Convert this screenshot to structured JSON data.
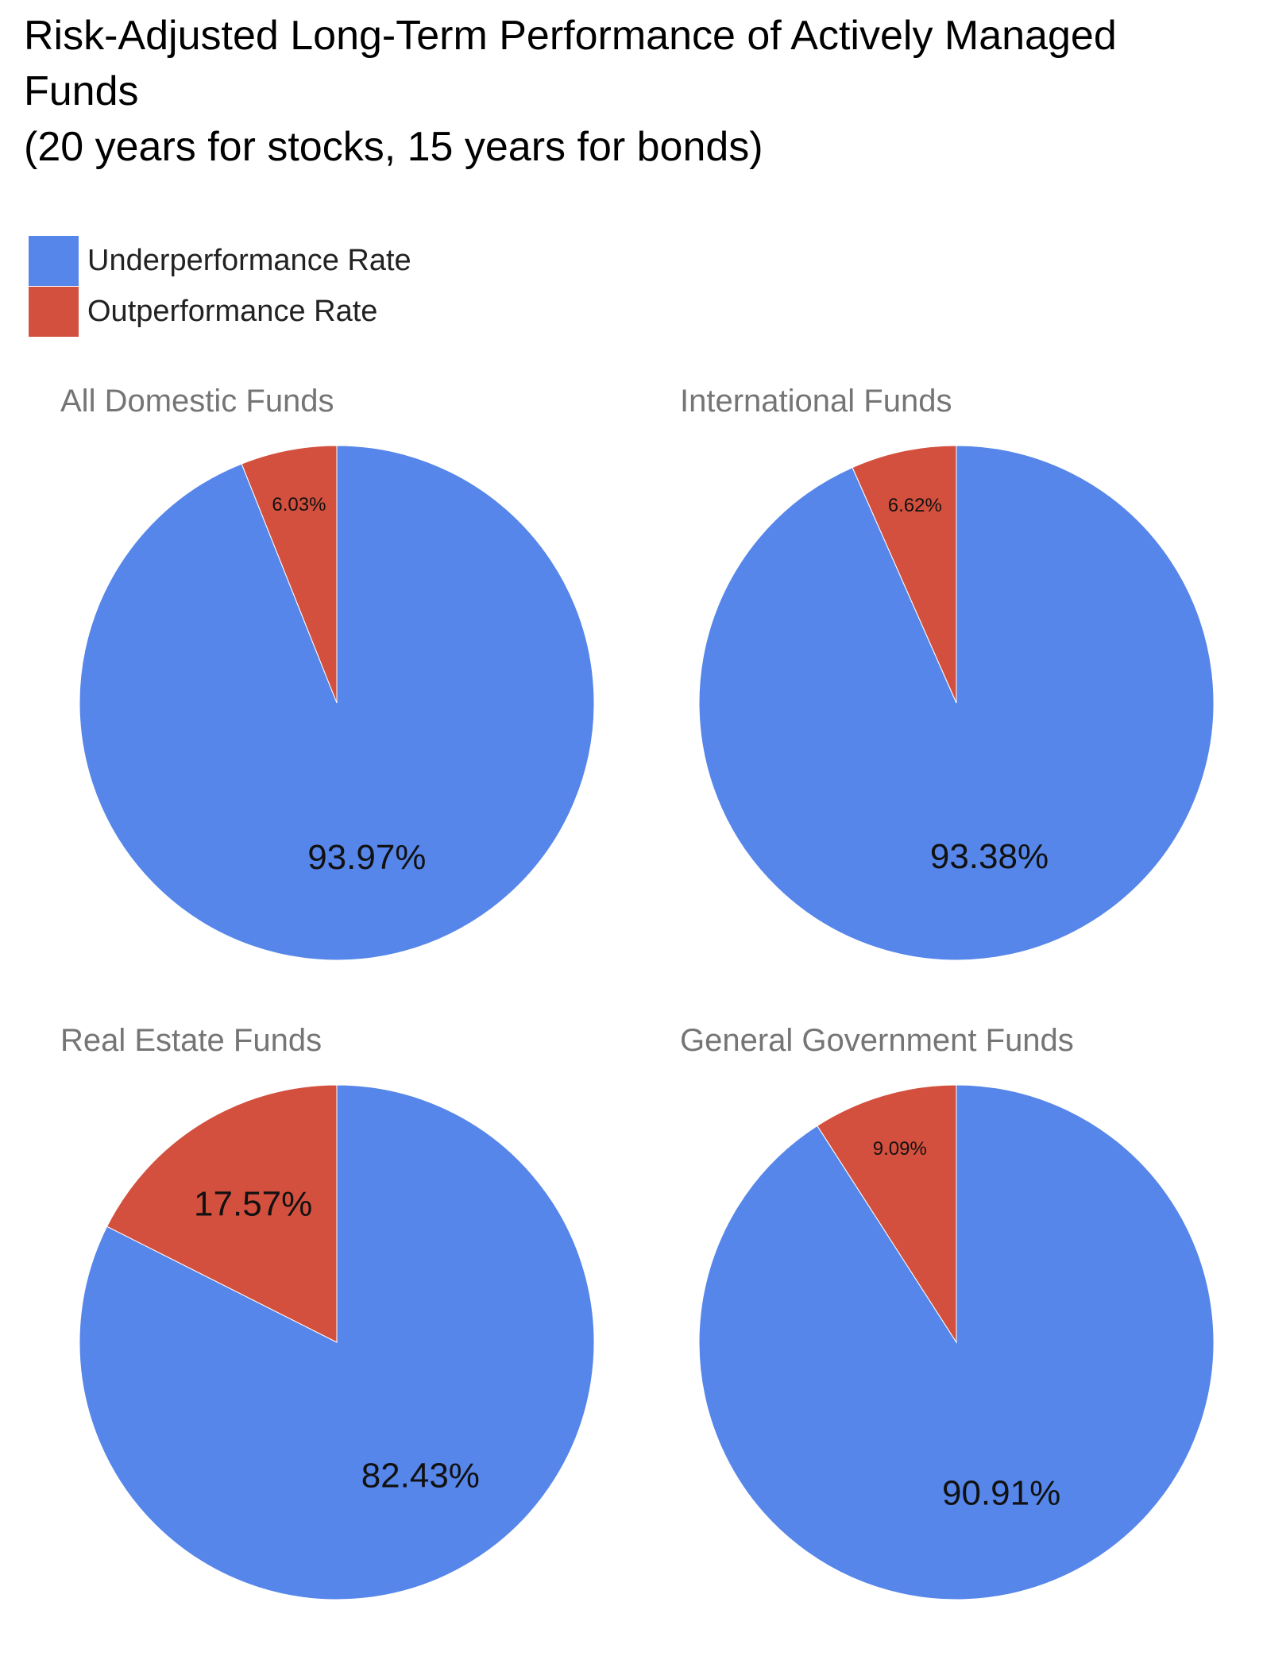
{
  "title": {
    "lines": [
      "Risk-Adjusted Long-Term Performance of Actively Managed",
      "Funds",
      "(20 years for stocks, 15 years for bonds)"
    ]
  },
  "legend": {
    "items": [
      {
        "label": "Underperformance Rate",
        "color": "#5686e9"
      },
      {
        "label": "Outperformance Rate",
        "color": "#d4503e"
      }
    ]
  },
  "chart_data": [
    {
      "type": "pie",
      "title": "All Domestic Funds",
      "slices": [
        {
          "name": "Underperformance Rate",
          "value": 93.97,
          "label": "93.97%",
          "color": "#5686e9"
        },
        {
          "name": "Outperformance Rate",
          "value": 6.03,
          "label": "6.03%",
          "color": "#d4503e"
        }
      ]
    },
    {
      "type": "pie",
      "title": "International Funds",
      "slices": [
        {
          "name": "Underperformance Rate",
          "value": 93.38,
          "label": "93.38%",
          "color": "#5686e9"
        },
        {
          "name": "Outperformance Rate",
          "value": 6.62,
          "label": "6.62%",
          "color": "#d4503e"
        }
      ]
    },
    {
      "type": "pie",
      "title": "Real Estate Funds",
      "slices": [
        {
          "name": "Underperformance Rate",
          "value": 82.43,
          "label": "82.43%",
          "color": "#5686e9"
        },
        {
          "name": "Outperformance Rate",
          "value": 17.57,
          "label": "17.57%",
          "color": "#d4503e"
        }
      ]
    },
    {
      "type": "pie",
      "title": "General Government Funds",
      "slices": [
        {
          "name": "Underperformance Rate",
          "value": 90.91,
          "label": "90.91%",
          "color": "#5686e9"
        },
        {
          "name": "Outperformance Rate",
          "value": 9.09,
          "label": "9.09%",
          "color": "#d4503e"
        }
      ]
    }
  ]
}
